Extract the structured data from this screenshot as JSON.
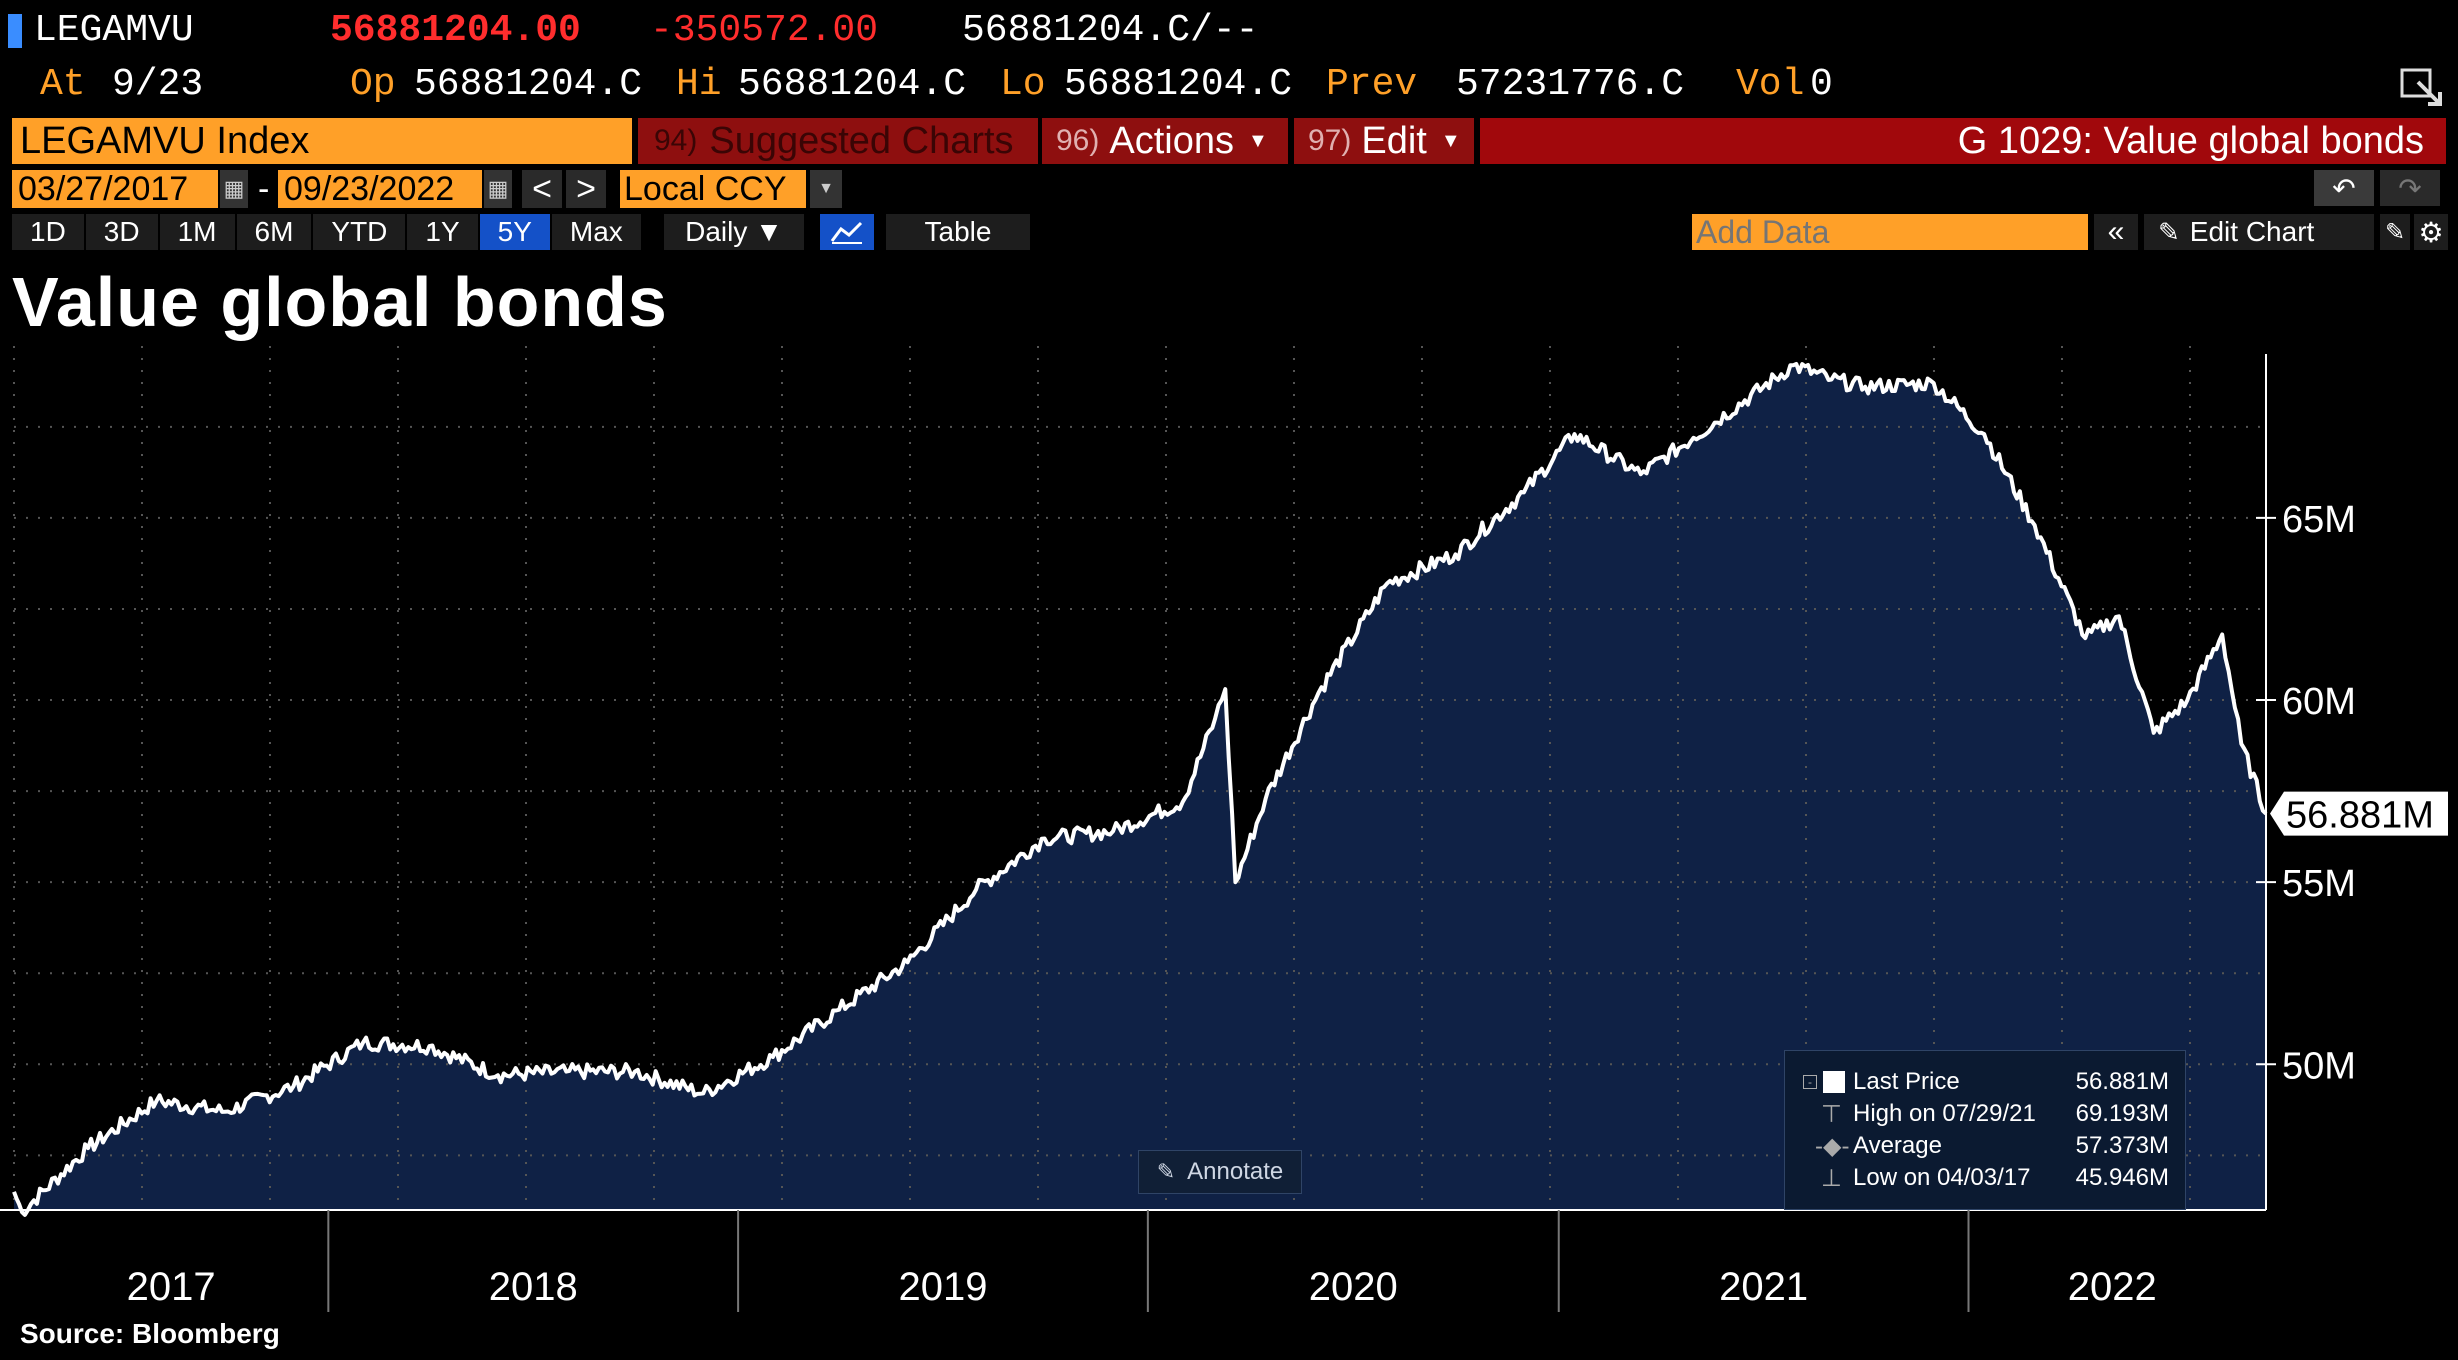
{
  "ticker": {
    "symbol": "LEGAMVU",
    "last": "56881204.00",
    "change": "-350572.00",
    "bidask": "56881204.C/--",
    "at_label": "At",
    "at_date": "9/23",
    "op_label": "Op",
    "op_value": "56881204.C",
    "hi_label": "Hi",
    "hi_value": "56881204.C",
    "lo_label": "Lo",
    "lo_value": "56881204.C",
    "prev_label": "Prev",
    "prev_value": "57231776.C",
    "vol_label": "Vol",
    "vol_value": "0"
  },
  "menu": {
    "security": "LEGAMVU Index",
    "suggested_num": "94)",
    "suggested_label": "Suggested Charts",
    "actions_num": "96)",
    "actions_label": "Actions",
    "edit_num": "97)",
    "edit_label": "Edit",
    "chart_id": "G 1029: Value global bonds"
  },
  "range": {
    "start_date": "03/27/2017",
    "separator": "-",
    "end_date": "09/23/2022",
    "prev_arrow": "<",
    "next_arrow": ">",
    "currency": "Local CCY"
  },
  "toolbar": {
    "periods": [
      "1D",
      "3D",
      "1M",
      "6M",
      "YTD",
      "1Y",
      "5Y",
      "Max"
    ],
    "active_period": "5Y",
    "frequency": "Daily ▼",
    "table_label": "Table",
    "add_data_placeholder": "Add Data",
    "edit_chart_label": "Edit Chart"
  },
  "chart_data": {
    "type": "area",
    "title": "Value global bonds",
    "source": "Source: Bloomberg",
    "x_labels": [
      "2017",
      "2018",
      "2019",
      "2020",
      "2021",
      "2022"
    ],
    "y_ticks": [
      "50M",
      "55M",
      "60M",
      "65M"
    ],
    "ylim": [
      46000000,
      69500000
    ],
    "xlim": [
      "2017-03-27",
      "2022-09-23"
    ],
    "last_value_label": "56.881M",
    "series": [
      {
        "x": [
          "2017-03-27",
          "2017-04-03",
          "2017-06-01",
          "2017-08-01",
          "2017-10-01",
          "2017-12-01",
          "2018-02-01",
          "2018-04-01",
          "2018-06-01",
          "2018-08-01",
          "2018-10-01",
          "2018-12-01",
          "2019-02-01",
          "2019-04-01",
          "2019-06-01",
          "2019-08-01",
          "2019-10-01",
          "2019-12-01",
          "2020-02-01",
          "2020-03-01",
          "2020-03-10",
          "2020-03-19",
          "2020-04-15",
          "2020-06-01",
          "2020-08-01",
          "2020-10-01",
          "2020-12-01",
          "2021-01-15",
          "2021-03-15",
          "2021-05-01",
          "2021-07-29",
          "2021-09-01",
          "2021-10-01",
          "2021-12-01",
          "2022-01-15",
          "2022-03-01",
          "2022-04-15",
          "2022-05-15",
          "2022-06-15",
          "2022-07-15",
          "2022-08-15",
          "2022-09-01",
          "2022-09-23"
        ],
        "values": [
          46500000,
          45946000,
          47700000,
          49000000,
          48700000,
          49400000,
          50600000,
          50500000,
          49700000,
          49800000,
          49800000,
          49200000,
          50200000,
          51500000,
          52800000,
          54800000,
          56200000,
          56400000,
          57200000,
          59500000,
          60300000,
          55000000,
          57300000,
          60200000,
          63200000,
          64000000,
          65700000,
          67300000,
          66200000,
          67200000,
          69193000,
          68800000,
          68600000,
          68700000,
          67300000,
          64800000,
          61700000,
          62300000,
          59100000,
          60000000,
          61800000,
          58800000,
          56881000
        ]
      }
    ],
    "legend": [
      {
        "label": "Last Price",
        "value": "56.881M"
      },
      {
        "label": "High on 07/29/21",
        "value": "69.193M"
      },
      {
        "label": "Average",
        "value": "57.373M"
      },
      {
        "label": "Low on 04/03/17",
        "value": "45.946M"
      }
    ],
    "annotate_label": "Annotate",
    "area_color": "#0f2145",
    "line_color": "#ffffff",
    "accent_color": "#ffa028"
  }
}
